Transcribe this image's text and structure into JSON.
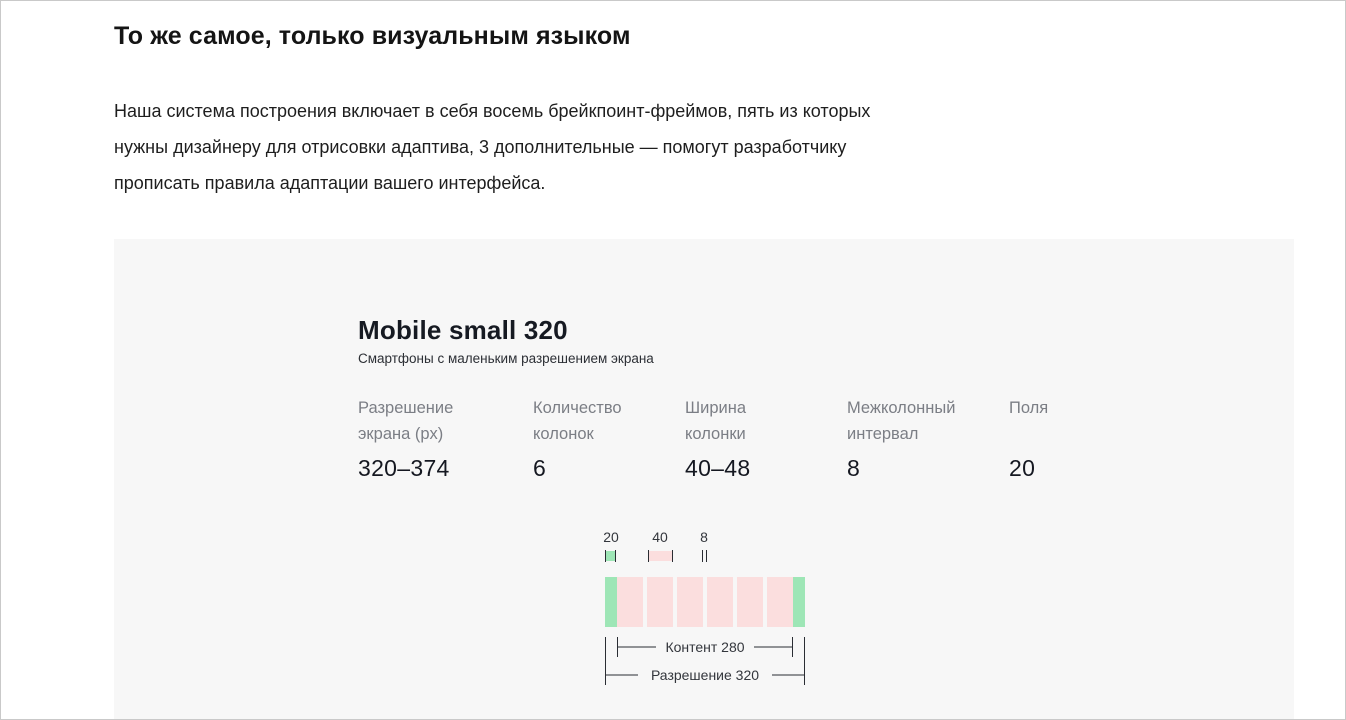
{
  "article": {
    "heading": "То же самое, только визуальным языком",
    "intro_lines": [
      "Наша система построения включает в себя восемь брейкпоинт-фреймов, пять из которых",
      "нужны дизайнеру для отрисовки адаптива, 3 дополнительные — помогут разработчику",
      "прописать правила адаптации вашего интерфейса."
    ]
  },
  "breakpoint": {
    "title": "Mobile small 320",
    "subtitle": "Смартфоны с маленьким разрешением экрана",
    "specs": [
      {
        "label_lines": [
          "Разрешение",
          "экрана (px)"
        ],
        "value": "320–374"
      },
      {
        "label_lines": [
          "Количество",
          "колонок"
        ],
        "value": "6"
      },
      {
        "label_lines": [
          "Ширина",
          "колонки"
        ],
        "value": "40–48"
      },
      {
        "label_lines": [
          "Межколонный",
          "интервал"
        ],
        "value": "8"
      },
      {
        "label_lines": [
          "Поля"
        ],
        "value": "20"
      }
    ]
  },
  "diagram": {
    "legend": {
      "margin": "20",
      "column": "40",
      "gutter": "8"
    },
    "columns_count": 6,
    "content_label": "Контент 280",
    "resolution_label": "Разрешение 320",
    "colors": {
      "margin": "#9ee6b6",
      "column": "#fbdede",
      "panel": "#f7f7f7",
      "line": "#2a2d33"
    }
  }
}
